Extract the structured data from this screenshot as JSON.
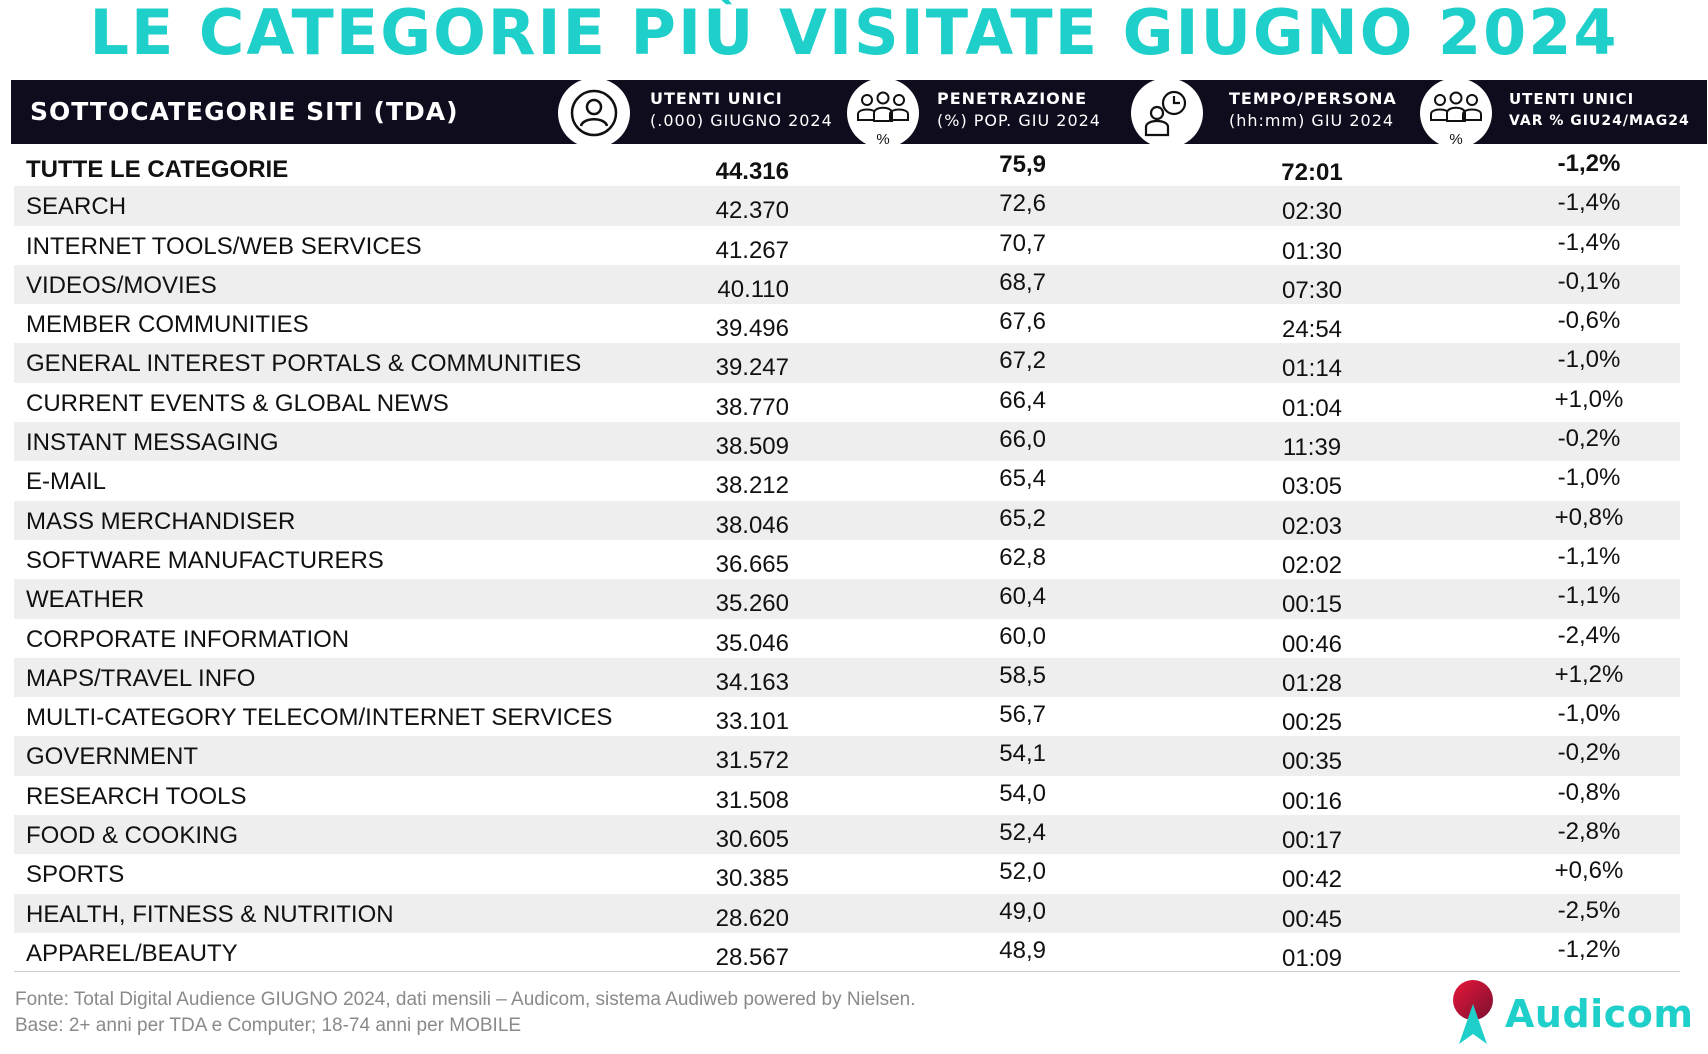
{
  "title": "LE CATEGORIE PIÙ VISITATE GIUGNO 2024",
  "header": {
    "category_label": "SOTTOCATEGORIE SITI  (TDA)",
    "col_users": {
      "line1": "UTENTI UNICI",
      "line2": "(.000) GIUGNO 2024"
    },
    "col_pen": {
      "line1": "PENETRAZIONE",
      "line2": "(%) POP. GIU 2024"
    },
    "col_time": {
      "line1": "TEMPO/PERSONA",
      "line2": "(hh:mm) GIU 2024"
    },
    "col_var": {
      "line1": "UTENTI UNICI",
      "line2": "VAR % GIU24/MAG24"
    },
    "pct_symbol": "%",
    "icons": [
      "user-icon",
      "group-percent-icon",
      "person-clock-icon",
      "group-percent-icon"
    ]
  },
  "rows": [
    {
      "name": "TUTTE LE CATEGORIE",
      "users": "44.316",
      "pen": "75,9",
      "time": "72:01",
      "var": "-1,2%"
    },
    {
      "name": "SEARCH",
      "users": "42.370",
      "pen": "72,6",
      "time": "02:30",
      "var": "-1,4%"
    },
    {
      "name": "INTERNET TOOLS/WEB SERVICES",
      "users": "41.267",
      "pen": "70,7",
      "time": "01:30",
      "var": "-1,4%"
    },
    {
      "name": "VIDEOS/MOVIES",
      "users": "40.110",
      "pen": "68,7",
      "time": "07:30",
      "var": "-0,1%"
    },
    {
      "name": "MEMBER COMMUNITIES",
      "users": "39.496",
      "pen": "67,6",
      "time": "24:54",
      "var": "-0,6%"
    },
    {
      "name": "GENERAL INTEREST PORTALS & COMMUNITIES",
      "users": "39.247",
      "pen": "67,2",
      "time": "01:14",
      "var": "-1,0%"
    },
    {
      "name": "CURRENT EVENTS & GLOBAL NEWS",
      "users": "38.770",
      "pen": "66,4",
      "time": "01:04",
      "var": "+1,0%"
    },
    {
      "name": "INSTANT MESSAGING",
      "users": "38.509",
      "pen": "66,0",
      "time": "11:39",
      "var": "-0,2%"
    },
    {
      "name": "E-MAIL",
      "users": "38.212",
      "pen": "65,4",
      "time": "03:05",
      "var": "-1,0%"
    },
    {
      "name": "MASS MERCHANDISER",
      "users": "38.046",
      "pen": "65,2",
      "time": "02:03",
      "var": "+0,8%"
    },
    {
      "name": "SOFTWARE MANUFACTURERS",
      "users": "36.665",
      "pen": "62,8",
      "time": "02:02",
      "var": "-1,1%"
    },
    {
      "name": "WEATHER",
      "users": "35.260",
      "pen": "60,4",
      "time": "00:15",
      "var": "-1,1%"
    },
    {
      "name": "CORPORATE INFORMATION",
      "users": "35.046",
      "pen": "60,0",
      "time": "00:46",
      "var": "-2,4%"
    },
    {
      "name": "MAPS/TRAVEL INFO",
      "users": "34.163",
      "pen": "58,5",
      "time": "01:28",
      "var": "+1,2%"
    },
    {
      "name": "MULTI-CATEGORY TELECOM/INTERNET SERVICES",
      "users": "33.101",
      "pen": "56,7",
      "time": "00:25",
      "var": "-1,0%"
    },
    {
      "name": "GOVERNMENT",
      "users": "31.572",
      "pen": "54,1",
      "time": "00:35",
      "var": "-0,2%"
    },
    {
      "name": "RESEARCH TOOLS",
      "users": "31.508",
      "pen": "54,0",
      "time": "00:16",
      "var": "-0,8%"
    },
    {
      "name": "FOOD & COOKING",
      "users": "30.605",
      "pen": "52,4",
      "time": "00:17",
      "var": "-2,8%"
    },
    {
      "name": "SPORTS",
      "users": "30.385",
      "pen": "52,0",
      "time": "00:42",
      "var": "+0,6%"
    },
    {
      "name": "HEALTH, FITNESS & NUTRITION",
      "users": "28.620",
      "pen": "49,0",
      "time": "00:45",
      "var": "-2,5%"
    },
    {
      "name": "APPAREL/BEAUTY",
      "users": "28.567",
      "pen": "48,9",
      "time": "01:09",
      "var": "-1,2%"
    }
  ],
  "footer": {
    "source": "Fonte: Total Digital Audience GIUGNO 2024, dati mensili – Audicom, sistema Audiweb powered by Nielsen.",
    "base": "Base: 2+ anni per TDA e Computer; 18-74 anni per MOBILE",
    "logo_text": "Audicom"
  },
  "colors": {
    "accent": "#1fcfca",
    "header_bg": "#0f0c1e",
    "row_shade": "#eeeeee",
    "logo_red": "#e8173a"
  }
}
